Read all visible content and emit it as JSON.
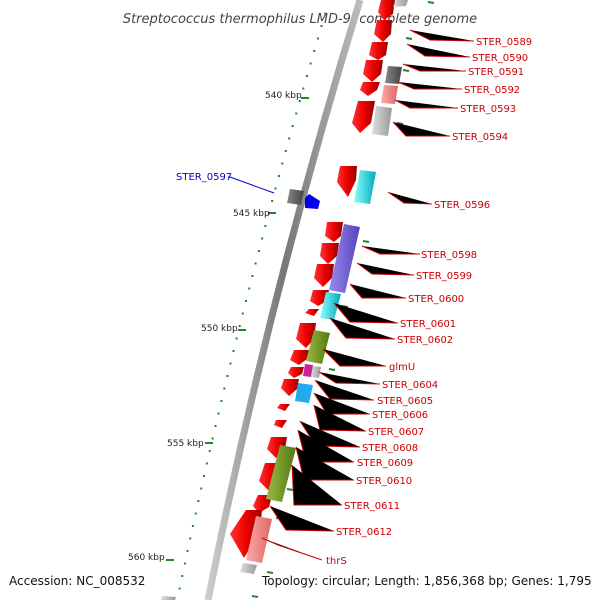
{
  "title": "Streptococcus thermophilus LMD-9, complete genome",
  "footer": {
    "accession": "Accession: NC_008532",
    "topology": "Topology: circular; Length: 1,856,368 bp; Genes: 1,795"
  },
  "kbp_ticks": [
    "540 kbp",
    "545 kbp",
    "550 kbp",
    "555 kbp",
    "560 kbp"
  ],
  "gene_labels": [
    {
      "text": "STER_0589",
      "color": "#cc0000"
    },
    {
      "text": "STER_0590",
      "color": "#cc0000"
    },
    {
      "text": "STER_0591",
      "color": "#cc0000"
    },
    {
      "text": "STER_0592",
      "color": "#cc0000"
    },
    {
      "text": "STER_0593",
      "color": "#cc0000"
    },
    {
      "text": "STER_0594",
      "color": "#cc0000"
    },
    {
      "text": "STER_0596",
      "color": "#cc0000"
    },
    {
      "text": "STER_0598",
      "color": "#cc0000"
    },
    {
      "text": "STER_0599",
      "color": "#cc0000"
    },
    {
      "text": "STER_0600",
      "color": "#cc0000"
    },
    {
      "text": "STER_0601",
      "color": "#cc0000"
    },
    {
      "text": "STER_0602",
      "color": "#cc0000"
    },
    {
      "text": "glmU",
      "color": "#cc0000"
    },
    {
      "text": "STER_0604",
      "color": "#cc0000"
    },
    {
      "text": "STER_0605",
      "color": "#cc0000"
    },
    {
      "text": "STER_0606",
      "color": "#cc0000"
    },
    {
      "text": "STER_0607",
      "color": "#cc0000"
    },
    {
      "text": "STER_0608",
      "color": "#cc0000"
    },
    {
      "text": "STER_0609",
      "color": "#cc0000"
    },
    {
      "text": "STER_0610",
      "color": "#cc0000"
    },
    {
      "text": "STER_0611",
      "color": "#cc0000"
    },
    {
      "text": "STER_0612",
      "color": "#cc0000"
    },
    {
      "text": "thrS",
      "color": "#cc0000"
    }
  ],
  "left_labels": [
    {
      "text": "STER_0597",
      "color": "#0000cc"
    }
  ],
  "colors": {
    "backbone": "#9a9a9a",
    "cds": "#ee0000",
    "cds_light": "#ff8888",
    "gray_dark": "#666666",
    "gray_light": "#bbbbbb",
    "cyan": "#00e5ee",
    "purple": "#7766dd",
    "olive": "#779922",
    "magenta": "#cc2299",
    "sky": "#22aaee",
    "blue": "#0000ee",
    "tick_green": "#228822",
    "label_red": "#cc0000",
    "label_blue": "#0000cc"
  }
}
